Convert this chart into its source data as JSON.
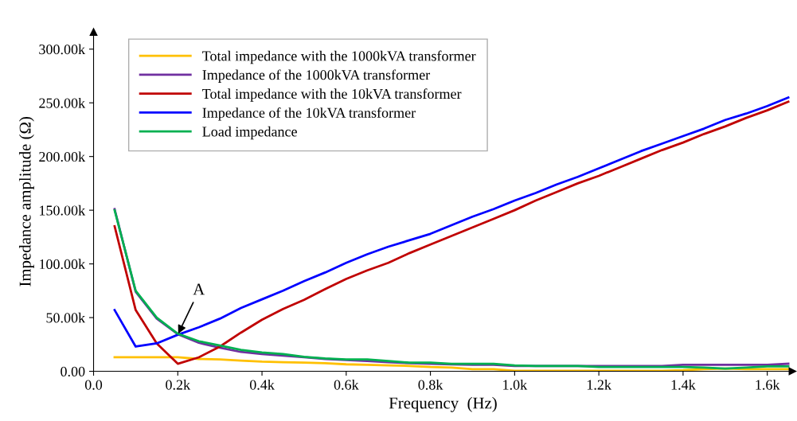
{
  "chart_data": {
    "type": "line",
    "xlabel": "Frequency  (Hz)",
    "ylabel": "Impedance amplitude (Ω)",
    "x": [
      0.05,
      0.1,
      0.15,
      0.2,
      0.25,
      0.3,
      0.35,
      0.4,
      0.45,
      0.5,
      0.55,
      0.6,
      0.65,
      0.7,
      0.75,
      0.8,
      0.85,
      0.9,
      0.95,
      1.0,
      1.05,
      1.1,
      1.15,
      1.2,
      1.25,
      1.3,
      1.35,
      1.4,
      1.45,
      1.5,
      1.55,
      1.6,
      1.65
    ],
    "series": [
      {
        "name": "Total impedance with the 1000kVA transformer",
        "color": "#ffc000",
        "values": [
          13,
          13,
          13,
          13,
          11.5,
          11,
          10,
          9,
          8.5,
          8,
          7.5,
          6.5,
          6,
          5.5,
          5,
          4,
          3.5,
          2,
          2,
          0.5,
          0.5,
          0.5,
          0.5,
          0.5,
          0.5,
          0.5,
          0.5,
          1,
          2,
          2.5,
          2,
          2,
          2
        ]
      },
      {
        "name": "Impedance of the 1000kVA transformer",
        "color": "#7030a0",
        "values": [
          151,
          74,
          49,
          34.5,
          26.5,
          22,
          18,
          16,
          14.5,
          13,
          11.5,
          10.5,
          9.5,
          8.5,
          7.5,
          7,
          6.5,
          6,
          6,
          5,
          5,
          5,
          5,
          5,
          5,
          5,
          5,
          6,
          6,
          6,
          6,
          6,
          7
        ]
      },
      {
        "name": "Total impedance with the 10kVA transformer",
        "color": "#c00000",
        "values": [
          135,
          57,
          26,
          7,
          13,
          23,
          36,
          48,
          58,
          66.5,
          76.5,
          86,
          94,
          101,
          110,
          118,
          126,
          134,
          142,
          150,
          159,
          167,
          175,
          182,
          190,
          198,
          206,
          213,
          221,
          228,
          236,
          243,
          251
        ]
      },
      {
        "name": "Impedance of the 10kVA transformer",
        "color": "#0000ff",
        "values": [
          57,
          23,
          26,
          34,
          41,
          49,
          59,
          67,
          75,
          84,
          92,
          101,
          109,
          116,
          122,
          128,
          136,
          144,
          151,
          159,
          166,
          174,
          181,
          189,
          197,
          205,
          212,
          219,
          226,
          234,
          240,
          247,
          255
        ]
      },
      {
        "name": "Load impedance",
        "color": "#00b050",
        "values": [
          150,
          75,
          50,
          35,
          28,
          24,
          20,
          17.5,
          16,
          13.5,
          12,
          11,
          11,
          9.5,
          8,
          8,
          7,
          7,
          7,
          5.5,
          5,
          5,
          5,
          4,
          4,
          4,
          4,
          4,
          3.5,
          2.5,
          3.5,
          4.5,
          4.5
        ]
      }
    ],
    "xlim": [
      0,
      1.66
    ],
    "ylim": [
      0,
      316
    ],
    "xticks": [
      {
        "value": 0,
        "label": "0.0"
      },
      {
        "value": 0.2,
        "label": "0.2k"
      },
      {
        "value": 0.4,
        "label": "0.4k"
      },
      {
        "value": 0.6,
        "label": "0.6k"
      },
      {
        "value": 0.8,
        "label": "0.8k"
      },
      {
        "value": 1.0,
        "label": "1.0k"
      },
      {
        "value": 1.2,
        "label": "1.2k"
      },
      {
        "value": 1.4,
        "label": "1.4k"
      },
      {
        "value": 1.6,
        "label": "1.6k"
      }
    ],
    "yticks": [
      {
        "value": 0,
        "label": "0.00"
      },
      {
        "value": 50,
        "label": "50.00k"
      },
      {
        "value": 100,
        "label": "100.00k"
      },
      {
        "value": 150,
        "label": "150.00k"
      },
      {
        "value": 200,
        "label": "200.00k"
      },
      {
        "value": 250,
        "label": "250.00k"
      },
      {
        "value": 300,
        "label": "300.00k"
      }
    ],
    "annotations": [
      {
        "text": "A",
        "x": 0.2,
        "y": 34
      }
    ],
    "legend": "top left",
    "grid": false,
    "marker": "none",
    "line_style": "solid"
  }
}
